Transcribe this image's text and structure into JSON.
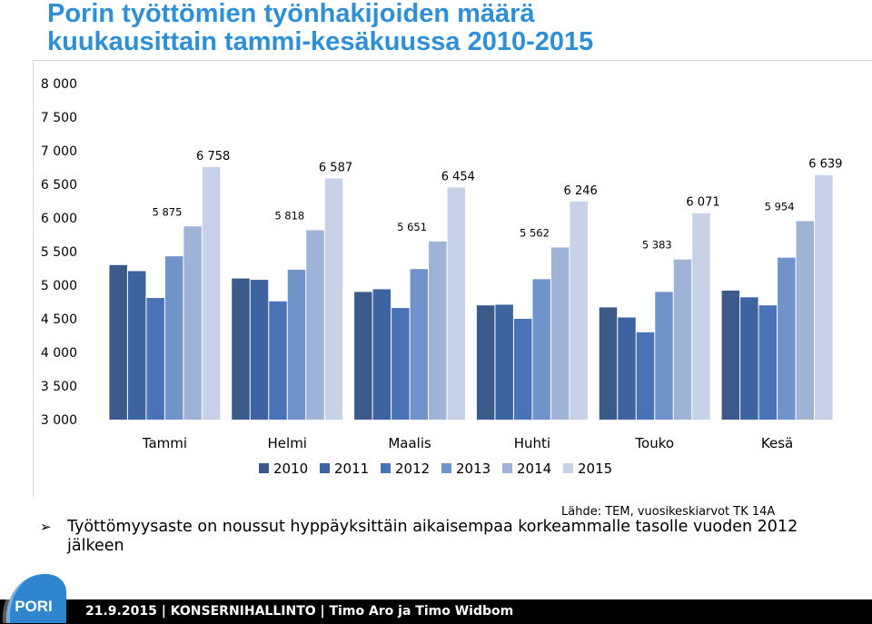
{
  "title_line1": "Porin työttömien työnhakijoiden määrä",
  "title_line2": "kuukausittain tammi-kesäkuussa 2010-2015",
  "chart_data": {
    "type": "bar",
    "categories": [
      "Tammi",
      "Helmi",
      "Maalis",
      "Huhti",
      "Touko",
      "Kesä"
    ],
    "series": [
      {
        "name": "2010",
        "color": "#3a5a8a",
        "values": [
          5300,
          5100,
          4900,
          4700,
          4670,
          4920
        ]
      },
      {
        "name": "2011",
        "color": "#3e64a0",
        "values": [
          5210,
          5080,
          4940,
          4710,
          4520,
          4820
        ]
      },
      {
        "name": "2012",
        "color": "#4a72b6",
        "values": [
          4810,
          4760,
          4660,
          4500,
          4300,
          4700
        ]
      },
      {
        "name": "2013",
        "color": "#7093c9",
        "values": [
          5430,
          5230,
          5240,
          5090,
          4900,
          5410
        ]
      },
      {
        "name": "2014",
        "color": "#9fb3d7",
        "values": [
          5875,
          5818,
          5651,
          5562,
          5383,
          5954
        ]
      },
      {
        "name": "2015",
        "color": "#c7d1e8",
        "values": [
          6758,
          6587,
          6454,
          6246,
          6071,
          6639
        ]
      }
    ],
    "data_labels": {
      "2014": [
        "5 875",
        "5 818",
        "5 651",
        "5 562",
        "5 383",
        "5 954"
      ],
      "2015": [
        "6 758",
        "6 587",
        "6 454",
        "6 246",
        "6 071",
        "6 639"
      ]
    },
    "y_tick_labels": [
      "3 000",
      "3 500",
      "4 000",
      "4 500",
      "5 000",
      "5 500",
      "6 000",
      "6 500",
      "7 000",
      "7 500",
      "8 000"
    ],
    "ylim": [
      3000,
      8000
    ],
    "legend_position": "bottom",
    "grid": false
  },
  "source_text": "Lähde: TEM, vuosikeskiarvot TK 14A",
  "bullet_text": "Työttömyysaste on noussut hyppäyksittäin aikaisempaa korkeammalle tasolle vuoden 2012 jälkeen",
  "logo_text": "PORI",
  "footer": "21.9.2015 | KONSERNIHALLINTO | Timo Aro ja Timo Widbom"
}
